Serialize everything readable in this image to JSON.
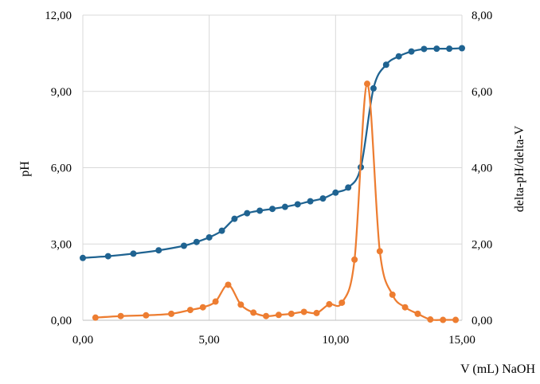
{
  "chart_data": {
    "type": "line",
    "xlabel": "V (mL) NaOH",
    "ylabel": "pH",
    "y2label": "delta-pH/delta-V",
    "xlim": [
      0,
      15
    ],
    "ylim": [
      0,
      12
    ],
    "y2lim": [
      0,
      8
    ],
    "xticks": [
      "0,00",
      "5,00",
      "10,00",
      "15,00"
    ],
    "yticks": [
      "0,00",
      "3,00",
      "6,00",
      "9,00",
      "12,00"
    ],
    "y2ticks": [
      "0,00",
      "2,00",
      "4,00",
      "6,00",
      "8,00"
    ],
    "grid": true,
    "colors": {
      "ph": "#1f6391",
      "derivative": "#ed7d31",
      "grid": "#d9d9d9"
    },
    "series": [
      {
        "axis": "left",
        "x": [
          0.0,
          1.0,
          2.0,
          3.0,
          4.0,
          4.5,
          5.0,
          5.5,
          6.0,
          6.5,
          7.0,
          7.5,
          8.0,
          8.5,
          9.0,
          9.5,
          10.0,
          10.5,
          11.0,
          11.5,
          12.0,
          12.5,
          13.0,
          13.5,
          14.0,
          14.5,
          15.0
        ],
        "values": [
          2.45,
          2.52,
          2.62,
          2.75,
          2.93,
          3.08,
          3.26,
          3.52,
          3.99,
          4.21,
          4.31,
          4.38,
          4.46,
          4.56,
          4.68,
          4.79,
          5.02,
          5.22,
          6.02,
          9.12,
          10.05,
          10.38,
          10.57,
          10.67,
          10.68,
          10.68,
          10.7
        ]
      },
      {
        "axis": "right",
        "x": [
          0.5,
          1.5,
          2.5,
          3.5,
          4.25,
          4.75,
          5.25,
          5.75,
          6.25,
          6.75,
          7.25,
          7.75,
          8.25,
          8.75,
          9.25,
          9.75,
          10.25,
          10.75,
          11.25,
          11.75,
          12.25,
          12.75,
          13.25,
          13.75,
          14.25,
          14.75
        ],
        "values": [
          0.07,
          0.11,
          0.13,
          0.17,
          0.27,
          0.34,
          0.49,
          0.93,
          0.41,
          0.2,
          0.11,
          0.14,
          0.17,
          0.22,
          0.19,
          0.42,
          0.46,
          1.59,
          6.2,
          1.81,
          0.67,
          0.34,
          0.17,
          0.02,
          0.01,
          0.01
        ]
      }
    ]
  }
}
